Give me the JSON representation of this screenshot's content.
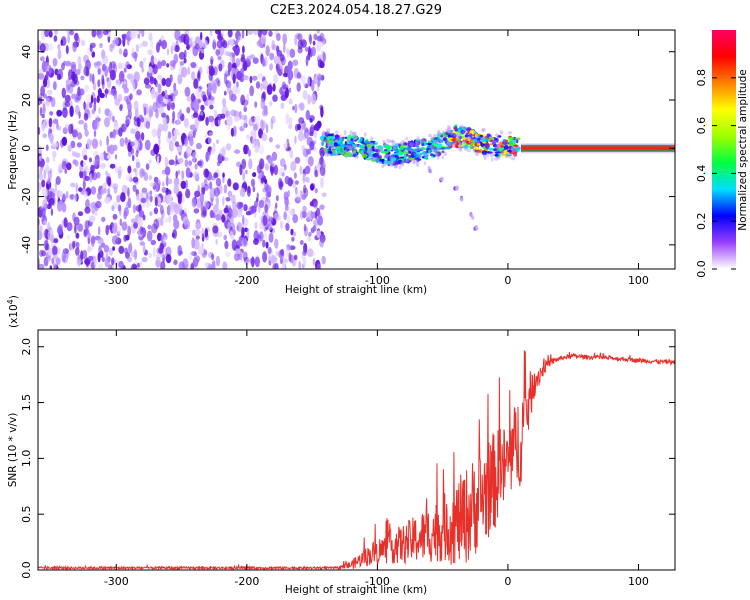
{
  "figure_title": "C2E3.2024.054.18.27.G29",
  "colors": {
    "snr_line": "#e8302a",
    "purple": "#6a1ee0",
    "axis": "#000000"
  },
  "chart_data": [
    {
      "type": "heatmap",
      "xlabel": "Height of straight line (km)",
      "ylabel": "Frequency (Hz)",
      "xlim": [
        -360,
        128
      ],
      "ylim": [
        -50,
        49
      ],
      "x_ticks": [
        -300,
        -200,
        -100,
        0,
        100
      ],
      "y_ticks": [
        -40,
        -20,
        0,
        20,
        40
      ],
      "x_tick_labels": [
        "-300",
        "-200",
        "-100",
        "0",
        "100"
      ],
      "y_tick_labels": [
        "-40",
        "-20",
        "0",
        "20",
        "40"
      ],
      "noise_region_x": [
        -360,
        -140
      ],
      "ridge": [
        {
          "x": -140,
          "y": 2
        },
        {
          "x": -130,
          "y": 1
        },
        {
          "x": -120,
          "y": 1
        },
        {
          "x": -110,
          "y": 0
        },
        {
          "x": -100,
          "y": -2
        },
        {
          "x": -90,
          "y": -3
        },
        {
          "x": -80,
          "y": -2
        },
        {
          "x": -70,
          "y": -1
        },
        {
          "x": -60,
          "y": 0
        },
        {
          "x": -50,
          "y": 2
        },
        {
          "x": -40,
          "y": 5
        },
        {
          "x": -30,
          "y": 4
        },
        {
          "x": -20,
          "y": 2
        },
        {
          "x": -10,
          "y": 1
        },
        {
          "x": 0,
          "y": 1
        },
        {
          "x": 10,
          "y": 0
        },
        {
          "x": 128,
          "y": 0
        }
      ],
      "tail": [
        {
          "x": -60,
          "y": -9
        },
        {
          "x": -50,
          "y": -13
        },
        {
          "x": -40,
          "y": -17
        },
        {
          "x": -35,
          "y": -21
        },
        {
          "x": -28,
          "y": -28
        },
        {
          "x": -25,
          "y": -33
        }
      ],
      "colorbar": {
        "label": "Normalized spectral amplitude",
        "range": [
          0,
          1
        ],
        "ticks": [
          0.0,
          0.2,
          0.4,
          0.6,
          0.8
        ],
        "tick_labels": [
          "0.0",
          "0.2",
          "0.4",
          "0.6",
          "0.8"
        ],
        "stops": [
          "#ffffff",
          "#9a40ff",
          "#0000ff",
          "#00dfff",
          "#00ff40",
          "#a0ff00",
          "#ffff00",
          "#ff8000",
          "#ff0000",
          "#ff0066"
        ]
      }
    },
    {
      "type": "line",
      "xlabel": "Height of straight line (km)",
      "ylabel": "SNR (10 * v/v)",
      "multiplier_base": "(x10",
      "multiplier_exp": "4",
      "multiplier_close": ")",
      "xlim": [
        -360,
        128
      ],
      "ylim": [
        0,
        2.15
      ],
      "x_ticks": [
        -300,
        -200,
        -100,
        0,
        100
      ],
      "y_ticks": [
        0,
        0.5,
        1.0,
        1.5,
        2.0
      ],
      "x_tick_labels": [
        "-300",
        "-200",
        "-100",
        "0",
        "100"
      ],
      "y_tick_labels": [
        "0.0",
        "0.5",
        "1.0",
        "1.5",
        "2.0"
      ],
      "series": [
        {
          "x": [
            -360,
            -300,
            -200,
            -130,
            -120,
            -110,
            -100,
            -90,
            -80,
            -70,
            -60,
            -50,
            -40,
            -30,
            -20,
            -10,
            0,
            10,
            20,
            30,
            40,
            50,
            60,
            80,
            100,
            128
          ],
          "y": [
            0.02,
            0.02,
            0.02,
            0.02,
            0.05,
            0.12,
            0.18,
            0.22,
            0.25,
            0.3,
            0.35,
            0.4,
            0.45,
            0.55,
            0.7,
            0.85,
            1.0,
            1.25,
            1.7,
            1.85,
            1.9,
            1.92,
            1.91,
            1.9,
            1.88,
            1.86
          ],
          "spread": [
            0.01,
            0.01,
            0.01,
            0.01,
            0.04,
            0.08,
            0.12,
            0.15,
            0.18,
            0.22,
            0.26,
            0.3,
            0.38,
            0.45,
            0.45,
            0.45,
            0.35,
            0.45,
            0.15,
            0.04,
            0.02,
            0.02,
            0.02,
            0.02,
            0.02,
            0.02
          ]
        }
      ]
    }
  ]
}
